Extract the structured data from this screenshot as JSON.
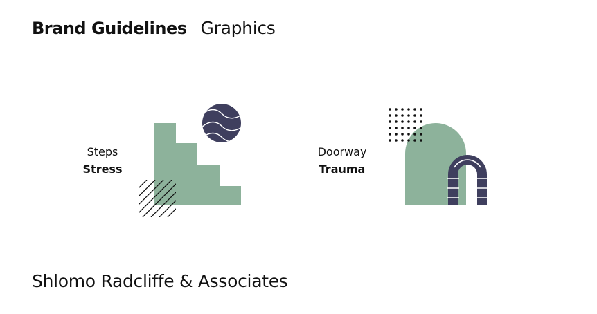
{
  "header": {
    "brand": "Brand Guidelines",
    "section": "Graphics"
  },
  "graphics": [
    {
      "name": "Steps",
      "theme": "Stress",
      "icon": "steps-graphic"
    },
    {
      "name": "Doorway",
      "theme": "Trauma",
      "icon": "doorway-graphic"
    }
  ],
  "footer": {
    "company": "Shlomo Radcliffe & Associates"
  },
  "colors": {
    "sage": "#8db29b",
    "navy": "#3f3f5e",
    "text": "#111111"
  }
}
